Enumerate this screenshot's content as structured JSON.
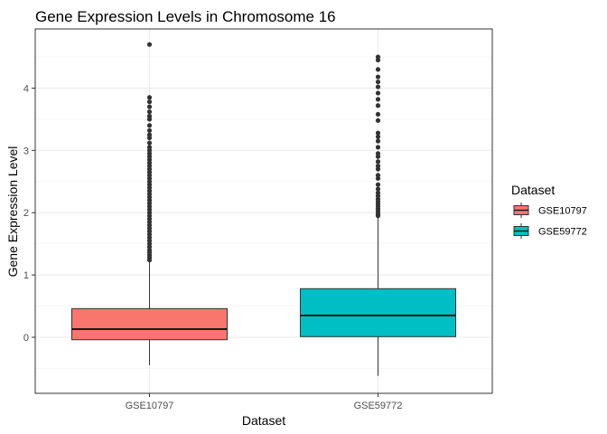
{
  "chart_data": {
    "type": "boxplot",
    "title": "Gene Expression Levels in Chromosome 16",
    "xlabel": "Dataset",
    "ylabel": "Gene Expression Level",
    "ylim": [
      -0.9,
      4.95
    ],
    "yticks": [
      0,
      1,
      2,
      3,
      4
    ],
    "grid": true,
    "legend": {
      "title": "Dataset",
      "position": "right"
    },
    "categories": [
      "GSE10797",
      "GSE59772"
    ],
    "series": [
      {
        "name": "GSE10797",
        "color": "#F8766D",
        "whisker_low": -0.45,
        "q1": -0.04,
        "median": 0.13,
        "q3": 0.46,
        "whisker_high": 1.22,
        "outliers": [
          1.24,
          1.28,
          1.32,
          1.36,
          1.4,
          1.45,
          1.5,
          1.55,
          1.6,
          1.65,
          1.7,
          1.75,
          1.8,
          1.85,
          1.9,
          1.95,
          2.0,
          2.05,
          2.1,
          2.15,
          2.2,
          2.25,
          2.3,
          2.35,
          2.4,
          2.45,
          2.5,
          2.55,
          2.6,
          2.65,
          2.7,
          2.75,
          2.8,
          2.85,
          2.9,
          2.95,
          3.0,
          3.05,
          3.12,
          3.2,
          3.25,
          3.32,
          3.4,
          3.5,
          3.55,
          3.62,
          3.7,
          3.78,
          3.85,
          4.7
        ]
      },
      {
        "name": "GSE59772",
        "color": "#00BFC4",
        "whisker_low": -0.62,
        "q1": 0.01,
        "median": 0.35,
        "q3": 0.78,
        "whisker_high": 1.92,
        "outliers": [
          1.95,
          1.98,
          2.02,
          2.06,
          2.1,
          2.14,
          2.18,
          2.22,
          2.27,
          2.32,
          2.38,
          2.45,
          2.55,
          2.6,
          2.7,
          2.75,
          2.82,
          2.9,
          2.95,
          3.05,
          3.15,
          3.22,
          3.28,
          3.48,
          3.58,
          3.72,
          3.82,
          3.92,
          4.02,
          4.1,
          4.18,
          4.3,
          4.45,
          4.5
        ]
      }
    ]
  }
}
